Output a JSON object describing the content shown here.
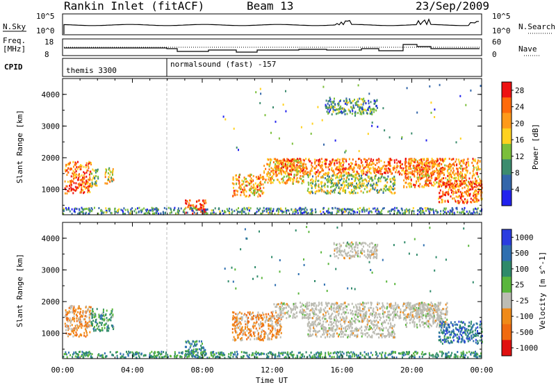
{
  "header": {
    "title": "Rankin Inlet (fitACF)",
    "beam": "Beam 13",
    "date": "23/Sep/2009"
  },
  "top_panels": {
    "nsky_label": "N.Sky",
    "nsearch_label": "N.Search",
    "noise_left_ticks": [
      "10^5",
      "10^0"
    ],
    "noise_right_ticks": [
      "10^5",
      "10^0"
    ],
    "freq_label_1": "Freq.",
    "freq_label_2": "[MHz]",
    "freq_ticks": [
      "18",
      "8"
    ],
    "nave_label": "Nave",
    "nave_ticks": [
      "60",
      "0"
    ],
    "cpid_label": "CPID",
    "cpid_entries": [
      {
        "name": "themis 3300",
        "start": "00:00"
      },
      {
        "name": "normalsound (fast) -157",
        "start": "06:00"
      }
    ]
  },
  "colors": {
    "power": [
      "#2222ee",
      "#3366aa",
      "#3c8c6e",
      "#7bbf3a",
      "#ffd21f",
      "#ff9a1a",
      "#ff6a0a",
      "#ee1111"
    ],
    "velocity": [
      "#2a3ce0",
      "#2f6fb0",
      "#2f8a6a",
      "#5ab63c",
      "#bdbdb4",
      "#f08a18",
      "#f06a10",
      "#e01010"
    ]
  },
  "chart_data": [
    {
      "type": "heatmap",
      "name": "power",
      "ylabel": "Slant Range [km]",
      "yticks": [
        "1000",
        "2000",
        "3000",
        "4000"
      ],
      "ylim": [
        200,
        4500
      ],
      "xlim": [
        "00:00",
        "24:00"
      ],
      "colorbar_label": "Power [dB]",
      "colorbar_ticks": [
        "4",
        "8",
        "12",
        "16",
        "20",
        "24",
        "28"
      ],
      "colorbar_range": [
        0,
        30
      ],
      "scatter_regions": [
        {
          "t": [
            0.1,
            1.6
          ],
          "r": [
            900,
            1900
          ],
          "level": 0.85
        },
        {
          "t": [
            1.6,
            2.0
          ],
          "r": [
            1100,
            1700
          ],
          "level": 0.45
        },
        {
          "t": [
            2.4,
            2.9
          ],
          "r": [
            1200,
            1700
          ],
          "level": 0.55
        },
        {
          "t": [
            7.0,
            8.2
          ],
          "r": [
            250,
            700
          ],
          "level": 0.95
        },
        {
          "t": [
            9.7,
            11.5
          ],
          "r": [
            800,
            1500
          ],
          "level": 0.7
        },
        {
          "t": [
            11.5,
            13.8
          ],
          "r": [
            1200,
            2000
          ],
          "level": 0.65
        },
        {
          "t": [
            12.0,
            21.8
          ],
          "r": [
            1500,
            2000
          ],
          "level": 0.8
        },
        {
          "t": [
            14.0,
            19.0
          ],
          "r": [
            900,
            1500
          ],
          "level": 0.45
        },
        {
          "t": [
            15.0,
            18.0
          ],
          "r": [
            3400,
            3900
          ],
          "level": 0.3
        },
        {
          "t": [
            19.5,
            23.9
          ],
          "r": [
            1100,
            2000
          ],
          "level": 0.75
        },
        {
          "t": [
            21.5,
            24.0
          ],
          "r": [
            600,
            1300
          ],
          "level": 0.85
        },
        {
          "t": [
            0.0,
            24.0
          ],
          "r": [
            250,
            450
          ],
          "level": 0.25
        }
      ]
    },
    {
      "type": "heatmap",
      "name": "velocity",
      "ylabel": "Slant Range [km]",
      "yticks": [
        "1000",
        "2000",
        "3000",
        "4000"
      ],
      "ylim": [
        200,
        4500
      ],
      "xlabel": "Time UT",
      "xticks": [
        "00:00",
        "04:00",
        "08:00",
        "12:00",
        "16:00",
        "20:00",
        "00:00"
      ],
      "colorbar_label": "Velocity [m s^-1]",
      "colorbar_ticks": [
        "1000",
        "500",
        "100",
        "25",
        "-25",
        "-100",
        "-500",
        "-1000"
      ],
      "scatter_regions": [
        {
          "t": [
            0.1,
            1.6
          ],
          "r": [
            900,
            1900
          ],
          "level": 0.7
        },
        {
          "t": [
            1.6,
            2.9
          ],
          "r": [
            1100,
            1800
          ],
          "level": 0.35
        },
        {
          "t": [
            7.0,
            8.2
          ],
          "r": [
            250,
            800
          ],
          "level": 0.25
        },
        {
          "t": [
            9.7,
            12.5
          ],
          "r": [
            800,
            1700
          ],
          "level": 0.7
        },
        {
          "t": [
            12.0,
            21.8
          ],
          "r": [
            1500,
            2000
          ],
          "level": 0.5
        },
        {
          "t": [
            14.0,
            19.0
          ],
          "r": [
            900,
            1500
          ],
          "level": 0.5
        },
        {
          "t": [
            15.5,
            18.0
          ],
          "r": [
            3400,
            3900
          ],
          "level": 0.5
        },
        {
          "t": [
            19.5,
            22.0
          ],
          "r": [
            1200,
            2000
          ],
          "level": 0.5
        },
        {
          "t": [
            21.5,
            24.0
          ],
          "r": [
            700,
            1400
          ],
          "level": 0.2
        },
        {
          "t": [
            0.0,
            24.0
          ],
          "r": [
            250,
            450
          ],
          "level": 0.3
        }
      ]
    }
  ]
}
